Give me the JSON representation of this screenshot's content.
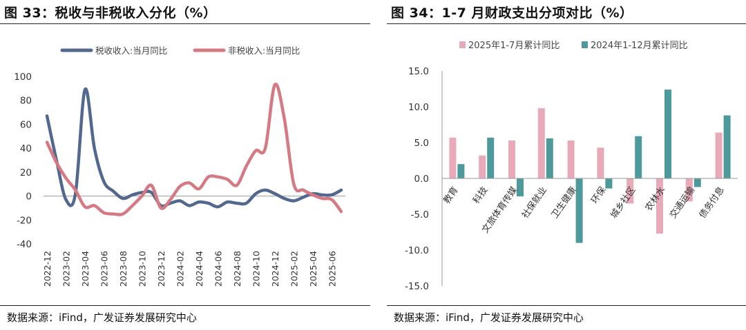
{
  "left": {
    "title": "图 33：税收与非税收入分化（%）",
    "source": "数据来源：iFind，广发证券发展研究中心"
  },
  "right": {
    "title": "图 34：1-7 月财政支出分项对比（%）",
    "source": "数据来源：iFind，广发证券发展研究中心"
  },
  "colors": {
    "series_blue": "#53688f",
    "series_red": "#d57a82",
    "bar_pink": "#e8aab8",
    "bar_teal": "#4e999b"
  },
  "chart_data": [
    {
      "type": "line",
      "legend_position": "top",
      "grid": false,
      "ylim": [
        -40,
        100
      ],
      "yticks": [
        -40,
        -20,
        0,
        20,
        40,
        60,
        80,
        100
      ],
      "xtick_labels": [
        "2022-12",
        "2023-02",
        "2023-04",
        "2023-06",
        "2023-08",
        "2023-10",
        "2023-12",
        "2024-02",
        "2024-04",
        "2024-06",
        "2024-08",
        "2024-10",
        "2024-12",
        "2025-02",
        "2025-04",
        "2025-06"
      ],
      "x": [
        "2022-12",
        "2023-01",
        "2023-02",
        "2023-03",
        "2023-04",
        "2023-05",
        "2023-06",
        "2023-07",
        "2023-08",
        "2023-09",
        "2023-10",
        "2023-11",
        "2023-12",
        "2024-01",
        "2024-02",
        "2024-03",
        "2024-04",
        "2024-05",
        "2024-06",
        "2024-07",
        "2024-08",
        "2024-09",
        "2024-10",
        "2024-11",
        "2024-12",
        "2025-01",
        "2025-02",
        "2025-03",
        "2025-04",
        "2025-05",
        "2025-06",
        "2025-07"
      ],
      "series": [
        {
          "name": "税收收入:当月同比",
          "color": "#53688f",
          "values": [
            67,
            30,
            -3,
            2,
            89,
            40,
            12,
            4,
            -2,
            1,
            3,
            3,
            -8,
            -6,
            -4,
            -8,
            -5,
            -6,
            -9,
            -5,
            -6,
            -6,
            2,
            5,
            2,
            -2,
            -4,
            -1,
            2,
            1,
            1,
            5
          ]
        },
        {
          "name": "非税收入:当月同比",
          "color": "#d57a82",
          "values": [
            45,
            28,
            15,
            5,
            -9,
            -8,
            -14,
            -15,
            -15,
            -8,
            0,
            9,
            -10,
            -3,
            8,
            11,
            6,
            16,
            16,
            14,
            9,
            25,
            38,
            40,
            93,
            65,
            10,
            5,
            1,
            -2,
            -3,
            -13
          ]
        }
      ]
    },
    {
      "type": "bar",
      "legend_position": "top",
      "grid": false,
      "ylim": [
        -15,
        15
      ],
      "yticks": [
        "15.0",
        "10.0",
        "5.0",
        "0.0",
        "-5.0",
        "-10.0",
        "-15.0"
      ],
      "categories": [
        "教育",
        "科技",
        "文旅体育传媒",
        "社保就业",
        "卫生健康",
        "环保",
        "城乡社区",
        "农林水",
        "交通运输",
        "债务付息"
      ],
      "series": [
        {
          "name": "2025年1-7月累计同比",
          "color": "#e8aab8",
          "values": [
            5.7,
            3.2,
            5.3,
            9.8,
            5.3,
            4.3,
            -3.5,
            -7.7,
            -3.2,
            6.4
          ]
        },
        {
          "name": "2024年1-12月累计同比",
          "color": "#4e999b",
          "values": [
            2.0,
            5.7,
            -2.5,
            5.6,
            -9.0,
            -1.4,
            5.9,
            12.4,
            -1.2,
            8.8
          ]
        }
      ]
    }
  ]
}
